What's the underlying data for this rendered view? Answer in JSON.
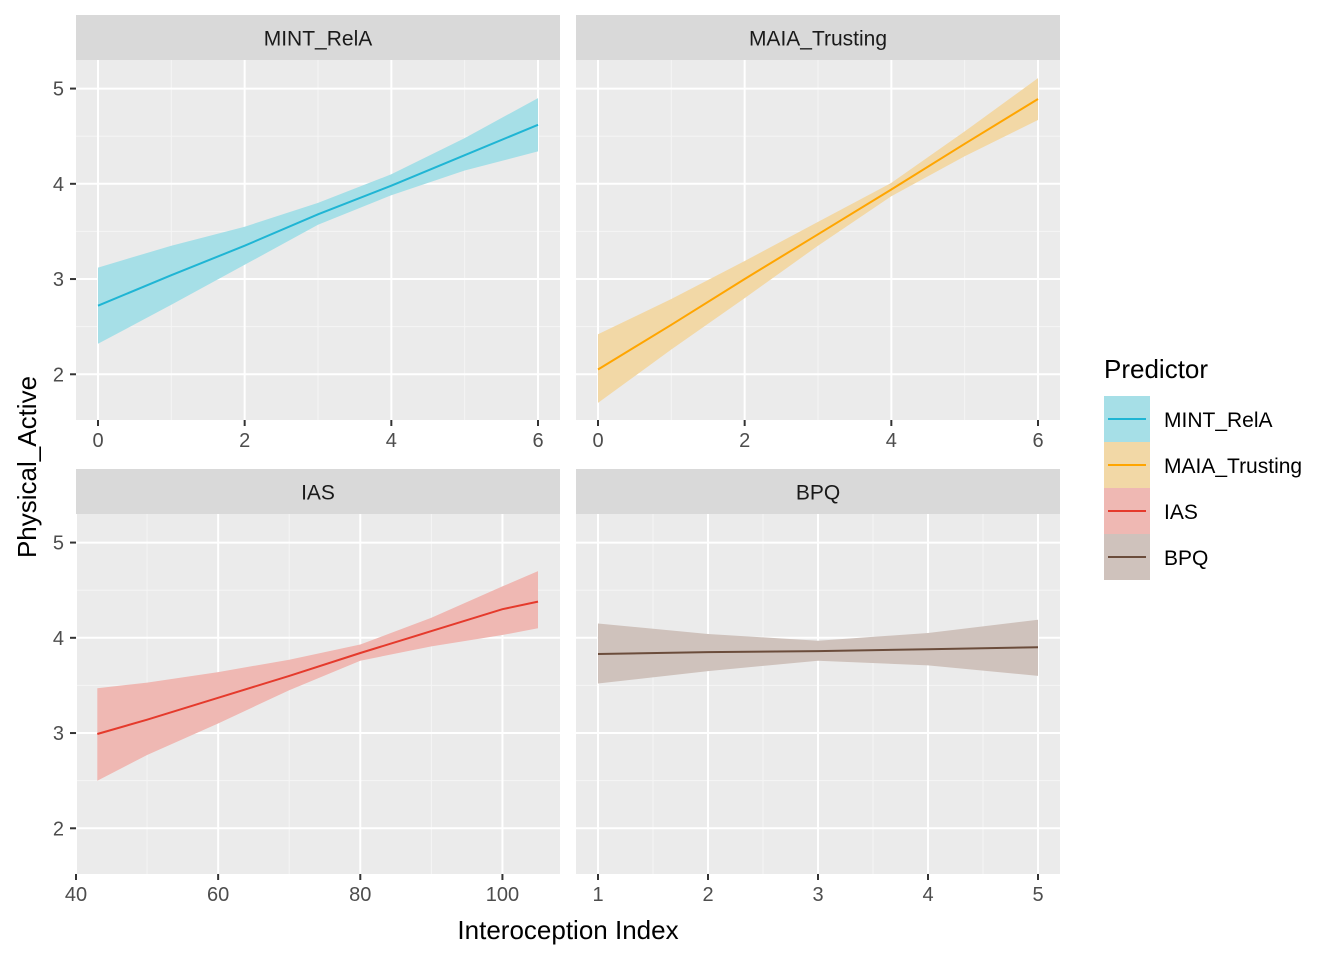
{
  "figure": {
    "xlabel": "Interoception Index",
    "ylabel": "Physical_Active",
    "legend_title": "Predictor",
    "legend_position": "right"
  },
  "legend": [
    {
      "label": "MINT_RelA",
      "line_color": "#1FB5D4",
      "fill_color": "#A6DFE7"
    },
    {
      "label": "MAIA_Trusting",
      "line_color": "#FFA500",
      "fill_color": "#F2D8A6"
    },
    {
      "label": "IAS",
      "line_color": "#E53A2C",
      "fill_color": "#EFB8B3"
    },
    {
      "label": "BPQ",
      "line_color": "#6B4C3B",
      "fill_color": "#CFC2BC"
    }
  ],
  "chart_data": [
    {
      "type": "line",
      "title": "MINT_RelA",
      "x_ticks": [
        0,
        2,
        4,
        6
      ],
      "y_ticks": [
        2,
        3,
        4,
        5
      ],
      "grid": true,
      "series": [
        {
          "name": "MINT_RelA",
          "x": [
            0,
            1,
            2,
            3,
            4,
            5,
            6
          ],
          "y": [
            2.72,
            3.04,
            3.35,
            3.68,
            3.98,
            4.3,
            4.62
          ],
          "lower": [
            2.32,
            2.73,
            3.15,
            3.57,
            3.88,
            4.14,
            4.34
          ],
          "upper": [
            3.12,
            3.35,
            3.55,
            3.8,
            4.1,
            4.48,
            4.9
          ]
        }
      ]
    },
    {
      "type": "line",
      "title": "MAIA_Trusting",
      "x_ticks": [
        0,
        2,
        4,
        6
      ],
      "y_ticks": [
        2,
        3,
        4,
        5
      ],
      "grid": true,
      "series": [
        {
          "name": "MAIA_Trusting",
          "x": [
            0,
            1,
            2,
            3,
            4,
            5,
            6
          ],
          "y": [
            2.05,
            2.52,
            3.0,
            3.47,
            3.94,
            4.42,
            4.89
          ],
          "lower": [
            1.7,
            2.26,
            2.8,
            3.35,
            3.87,
            4.29,
            4.67
          ],
          "upper": [
            2.42,
            2.79,
            3.19,
            3.6,
            4.01,
            4.55,
            5.11
          ]
        }
      ]
    },
    {
      "type": "line",
      "title": "IAS",
      "x_ticks": [
        40,
        60,
        80,
        100
      ],
      "y_ticks": [
        2,
        3,
        4,
        5
      ],
      "grid": true,
      "series": [
        {
          "name": "IAS",
          "x": [
            43,
            50,
            60,
            70,
            80,
            90,
            100,
            105
          ],
          "y": [
            2.99,
            3.14,
            3.37,
            3.6,
            3.84,
            4.07,
            4.3,
            4.38
          ],
          "lower": [
            2.5,
            2.77,
            3.1,
            3.45,
            3.76,
            3.91,
            4.03,
            4.1
          ],
          "upper": [
            3.47,
            3.53,
            3.64,
            3.77,
            3.93,
            4.21,
            4.54,
            4.7
          ]
        }
      ]
    },
    {
      "type": "line",
      "title": "BPQ",
      "x_ticks": [
        1,
        2,
        3,
        4,
        5
      ],
      "y_ticks": [
        2,
        3,
        4,
        5
      ],
      "grid": true,
      "series": [
        {
          "name": "BPQ",
          "x": [
            1,
            2,
            3,
            4,
            5
          ],
          "y": [
            3.83,
            3.85,
            3.86,
            3.88,
            3.9
          ],
          "lower": [
            3.52,
            3.65,
            3.76,
            3.71,
            3.6
          ],
          "upper": [
            4.15,
            4.04,
            3.97,
            4.05,
            4.19
          ]
        }
      ]
    }
  ]
}
